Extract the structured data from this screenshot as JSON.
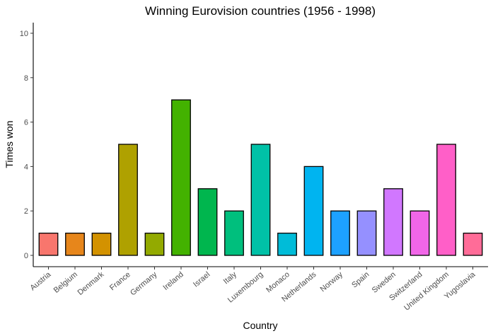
{
  "chart_data": {
    "type": "bar",
    "title": "Winning Eurovision countries (1956 - 1998)",
    "xlabel": "Country",
    "ylabel": "Times won",
    "ylim": [
      0,
      10
    ],
    "yticks": [
      0,
      2,
      4,
      6,
      8,
      10
    ],
    "grid": false,
    "legend": "none",
    "categories": [
      "Austria",
      "Belgium",
      "Denmark",
      "France",
      "Germany",
      "Ireland",
      "Israel",
      "Italy",
      "Luxembourg",
      "Monaco",
      "Netherlands",
      "Norway",
      "Spain",
      "Sweden",
      "Switzerland",
      "United Kingdom",
      "Yugoslavia"
    ],
    "values": [
      1,
      1,
      1,
      5,
      1,
      7,
      3,
      2,
      5,
      1,
      4,
      2,
      2,
      3,
      2,
      5,
      1
    ],
    "colors": [
      "#F8766D",
      "#E7861B",
      "#D39200",
      "#AFA100",
      "#93AA00",
      "#43B200",
      "#00B64E",
      "#00BF7D",
      "#00C1A7",
      "#00BCD8",
      "#00B4F0",
      "#1DA1FF",
      "#9590FF",
      "#D177FF",
      "#F166E8",
      "#FF5FC8",
      "#FF6C98"
    ]
  }
}
